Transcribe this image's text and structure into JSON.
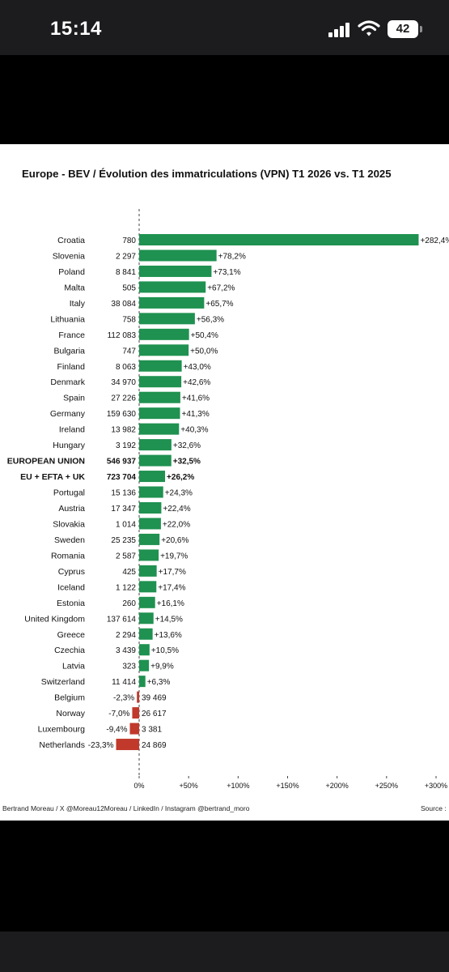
{
  "status_bar": {
    "time": "15:14",
    "battery_level": "42",
    "icons": [
      "cellular-signal-icon",
      "wifi-icon",
      "battery-icon"
    ]
  },
  "chart_data": {
    "type": "bar",
    "orientation": "horizontal",
    "title": "Europe - BEV / Évolution des immatriculations (VPN) T1 2026 vs. T1 2025",
    "xlabel": "",
    "ylabel": "",
    "xlim": [
      0,
      300
    ],
    "x_ticks": [
      "0%",
      "+50%",
      "+100%",
      "+150%",
      "+200%",
      "+250%",
      "+300%"
    ],
    "grid": false,
    "zero_line": "dashed",
    "colors": {
      "positive": "#1f9150",
      "negative": "#c0392b"
    },
    "rows": [
      {
        "label": "Croatia",
        "count": "780",
        "pct": 282.4,
        "pct_label": "+282,4%",
        "bold": false
      },
      {
        "label": "Slovenia",
        "count": "2 297",
        "pct": 78.2,
        "pct_label": "+78,2%",
        "bold": false
      },
      {
        "label": "Poland",
        "count": "8 841",
        "pct": 73.1,
        "pct_label": "+73,1%",
        "bold": false
      },
      {
        "label": "Malta",
        "count": "505",
        "pct": 67.2,
        "pct_label": "+67,2%",
        "bold": false
      },
      {
        "label": "Italy",
        "count": "38 084",
        "pct": 65.7,
        "pct_label": "+65,7%",
        "bold": false
      },
      {
        "label": "Lithuania",
        "count": "758",
        "pct": 56.3,
        "pct_label": "+56,3%",
        "bold": false
      },
      {
        "label": "France",
        "count": "112 083",
        "pct": 50.4,
        "pct_label": "+50,4%",
        "bold": false
      },
      {
        "label": "Bulgaria",
        "count": "747",
        "pct": 50.0,
        "pct_label": "+50,0%",
        "bold": false
      },
      {
        "label": "Finland",
        "count": "8 063",
        "pct": 43.0,
        "pct_label": "+43,0%",
        "bold": false
      },
      {
        "label": "Denmark",
        "count": "34 970",
        "pct": 42.6,
        "pct_label": "+42,6%",
        "bold": false
      },
      {
        "label": "Spain",
        "count": "27 226",
        "pct": 41.6,
        "pct_label": "+41,6%",
        "bold": false
      },
      {
        "label": "Germany",
        "count": "159 630",
        "pct": 41.3,
        "pct_label": "+41,3%",
        "bold": false
      },
      {
        "label": "Ireland",
        "count": "13 982",
        "pct": 40.3,
        "pct_label": "+40,3%",
        "bold": false
      },
      {
        "label": "Hungary",
        "count": "3 192",
        "pct": 32.6,
        "pct_label": "+32,6%",
        "bold": false
      },
      {
        "label": "EUROPEAN UNION",
        "count": "546 937",
        "pct": 32.5,
        "pct_label": "+32,5%",
        "bold": true
      },
      {
        "label": "EU + EFTA + UK",
        "count": "723 704",
        "pct": 26.2,
        "pct_label": "+26,2%",
        "bold": true
      },
      {
        "label": "Portugal",
        "count": "15 136",
        "pct": 24.3,
        "pct_label": "+24,3%",
        "bold": false
      },
      {
        "label": "Austria",
        "count": "17 347",
        "pct": 22.4,
        "pct_label": "+22,4%",
        "bold": false
      },
      {
        "label": "Slovakia",
        "count": "1 014",
        "pct": 22.0,
        "pct_label": "+22,0%",
        "bold": false
      },
      {
        "label": "Sweden",
        "count": "25 235",
        "pct": 20.6,
        "pct_label": "+20,6%",
        "bold": false
      },
      {
        "label": "Romania",
        "count": "2 587",
        "pct": 19.7,
        "pct_label": "+19,7%",
        "bold": false
      },
      {
        "label": "Cyprus",
        "count": "425",
        "pct": 17.7,
        "pct_label": "+17,7%",
        "bold": false
      },
      {
        "label": "Iceland",
        "count": "1 122",
        "pct": 17.4,
        "pct_label": "+17,4%",
        "bold": false
      },
      {
        "label": "Estonia",
        "count": "260",
        "pct": 16.1,
        "pct_label": "+16,1%",
        "bold": false
      },
      {
        "label": "United Kingdom",
        "count": "137 614",
        "pct": 14.5,
        "pct_label": "+14,5%",
        "bold": false
      },
      {
        "label": "Greece",
        "count": "2 294",
        "pct": 13.6,
        "pct_label": "+13,6%",
        "bold": false
      },
      {
        "label": "Czechia",
        "count": "3 439",
        "pct": 10.5,
        "pct_label": "+10,5%",
        "bold": false
      },
      {
        "label": "Latvia",
        "count": "323",
        "pct": 9.9,
        "pct_label": "+9,9%",
        "bold": false
      },
      {
        "label": "Switzerland",
        "count": "11 414",
        "pct": 6.3,
        "pct_label": "+6,3%",
        "bold": false
      },
      {
        "label": "Belgium",
        "count": "39 469",
        "pct": -2.3,
        "pct_label": "-2,3%",
        "bold": false
      },
      {
        "label": "Norway",
        "count": "26 617",
        "pct": -7.0,
        "pct_label": "-7,0%",
        "bold": false
      },
      {
        "label": "Luxembourg",
        "count": "3 381",
        "pct": -9.4,
        "pct_label": "-9,4%",
        "bold": false
      },
      {
        "label": "Netherlands",
        "count": "24 869",
        "pct": -23.3,
        "pct_label": "-23,3%",
        "bold": false
      }
    ],
    "footer_left": "Bertrand Moreau / X @Moreau12Moreau / LinkedIn / Instagram @bertrand_moro",
    "footer_right": "Source :"
  }
}
